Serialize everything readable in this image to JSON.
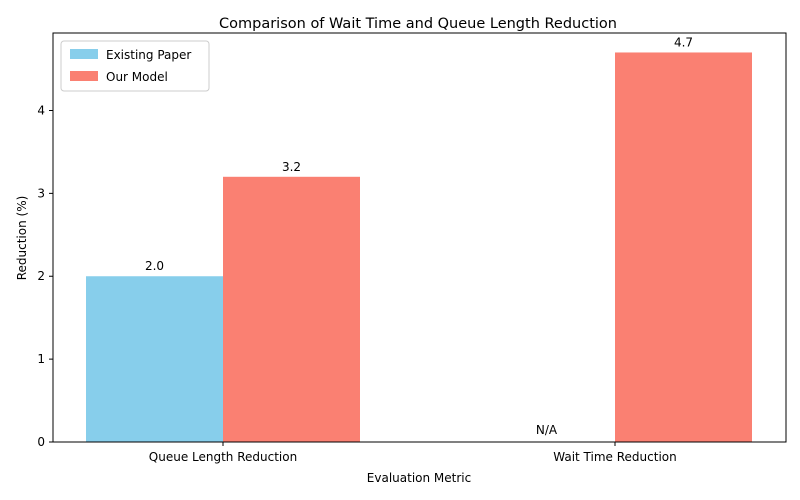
{
  "chart_data": {
    "type": "bar",
    "title": "Comparison of Wait Time and Queue Length Reduction",
    "xlabel": "Evaluation Metric",
    "ylabel": "Reduction (%)",
    "categories": [
      "Queue Length Reduction",
      "Wait Time Reduction"
    ],
    "series": [
      {
        "name": "Existing Paper",
        "values": [
          2.0,
          null
        ],
        "labels": [
          "2.0",
          "N/A"
        ],
        "color": "#87CEEB"
      },
      {
        "name": "Our Model",
        "values": [
          3.2,
          4.7
        ],
        "labels": [
          "3.2",
          "4.7"
        ],
        "color": "#FA8072"
      }
    ],
    "ylim": [
      0,
      4.935
    ],
    "yticks": [
      0,
      1,
      2,
      3,
      4
    ],
    "legend_position": "top-left",
    "grid": false
  }
}
